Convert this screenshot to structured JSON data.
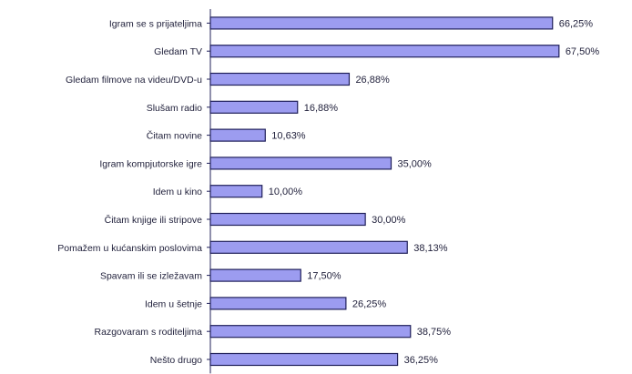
{
  "chart_data": {
    "type": "bar",
    "orientation": "horizontal",
    "categories": [
      "Igram se s prijateljima",
      "Gledam TV",
      "Gledam filmove na videu/DVD-u",
      "Slušam radio",
      "Čitam novine",
      "Igram kompjutorske igre",
      "Idem u kino",
      "Čitam knjige ili stripove",
      "Pomažem u kućanskim poslovima",
      "Spavam ili se izležavam",
      "Idem u šetnje",
      "Razgovaram s roditeljima",
      "Nešto drugo"
    ],
    "values": [
      66.25,
      67.5,
      26.88,
      16.88,
      10.63,
      35.0,
      10.0,
      30.0,
      38.13,
      17.5,
      26.25,
      38.75,
      36.25
    ],
    "value_labels": [
      "66,25%",
      "67,50%",
      "26,88%",
      "16,88%",
      "10,63%",
      "35,00%",
      "10,00%",
      "30,00%",
      "38,13%",
      "17,50%",
      "26,25%",
      "38,75%",
      "36,25%"
    ],
    "xlim": [
      0,
      70
    ],
    "grid": false,
    "legend": "none",
    "colors": {
      "bar_fill": "#9c9cf0",
      "bar_stroke": "#20205a"
    }
  }
}
